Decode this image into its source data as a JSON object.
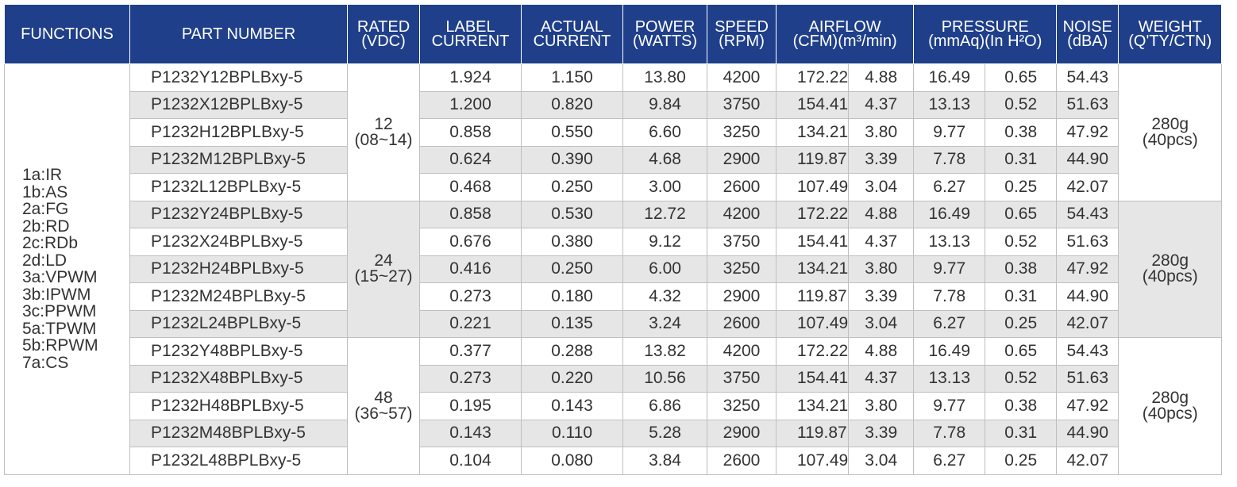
{
  "headers": {
    "functions": [
      "FUNCTIONS"
    ],
    "part_number": [
      "PART NUMBER"
    ],
    "rated": [
      "RATED",
      "(VDC)"
    ],
    "label_current": [
      "LABEL",
      "CURRENT"
    ],
    "actual_current": [
      "ACTUAL",
      "CURRENT"
    ],
    "power": [
      "POWER",
      "(WATTS)"
    ],
    "speed": [
      "SPEED",
      "(RPM)"
    ],
    "airflow": [
      "AIRFLOW",
      "(CFM)(m³/min)"
    ],
    "pressure": [
      "PRESSURE",
      "(mmAq)(In H²O)"
    ],
    "noise": [
      "NOISE",
      "(dBA)"
    ],
    "weight": [
      "WEIGHT",
      "(Q'TY/CTN)"
    ]
  },
  "functions": [
    "1a:IR",
    "1b:AS",
    "2a:FG",
    "2b:RD",
    "2c:RDb",
    "2d:LD",
    "3a:VPWM",
    "3b:IPWM",
    "3c:PPWM",
    "5a:TPWM",
    "5b:RPWM",
    "7a:CS"
  ],
  "groups": [
    {
      "rated": [
        "12",
        "(08~14)"
      ],
      "weight": [
        "280g",
        "(40pcs)"
      ],
      "rows": [
        {
          "part": "P1232Y12BPLBxy-5",
          "label": "1.924",
          "actual": "1.150",
          "power": "13.80",
          "speed": "4200",
          "cfm": "172.22",
          "m3": "4.88",
          "mmaq": "16.49",
          "inh2o": "0.65",
          "noise": "54.43"
        },
        {
          "part": "P1232X12BPLBxy-5",
          "label": "1.200",
          "actual": "0.820",
          "power": "9.84",
          "speed": "3750",
          "cfm": "154.41",
          "m3": "4.37",
          "mmaq": "13.13",
          "inh2o": "0.52",
          "noise": "51.63"
        },
        {
          "part": "P1232H12BPLBxy-5",
          "label": "0.858",
          "actual": "0.550",
          "power": "6.60",
          "speed": "3250",
          "cfm": "134.21",
          "m3": "3.80",
          "mmaq": "9.77",
          "inh2o": "0.38",
          "noise": "47.92"
        },
        {
          "part": "P1232M12BPLBxy-5",
          "label": "0.624",
          "actual": "0.390",
          "power": "4.68",
          "speed": "2900",
          "cfm": "119.87",
          "m3": "3.39",
          "mmaq": "7.78",
          "inh2o": "0.31",
          "noise": "44.90"
        },
        {
          "part": "P1232L12BPLBxy-5",
          "label": "0.468",
          "actual": "0.250",
          "power": "3.00",
          "speed": "2600",
          "cfm": "107.49",
          "m3": "3.04",
          "mmaq": "6.27",
          "inh2o": "0.25",
          "noise": "42.07"
        }
      ]
    },
    {
      "rated": [
        "24",
        "(15~27)"
      ],
      "weight": [
        "280g",
        "(40pcs)"
      ],
      "rows": [
        {
          "part": "P1232Y24BPLBxy-5",
          "label": "0.858",
          "actual": "0.530",
          "power": "12.72",
          "speed": "4200",
          "cfm": "172.22",
          "m3": "4.88",
          "mmaq": "16.49",
          "inh2o": "0.65",
          "noise": "54.43"
        },
        {
          "part": "P1232X24BPLBxy-5",
          "label": "0.676",
          "actual": "0.380",
          "power": "9.12",
          "speed": "3750",
          "cfm": "154.41",
          "m3": "4.37",
          "mmaq": "13.13",
          "inh2o": "0.52",
          "noise": "51.63"
        },
        {
          "part": "P1232H24BPLBxy-5",
          "label": "0.416",
          "actual": "0.250",
          "power": "6.00",
          "speed": "3250",
          "cfm": "134.21",
          "m3": "3.80",
          "mmaq": "9.77",
          "inh2o": "0.38",
          "noise": "47.92"
        },
        {
          "part": "P1232M24BPLBxy-5",
          "label": "0.273",
          "actual": "0.180",
          "power": "4.32",
          "speed": "2900",
          "cfm": "119.87",
          "m3": "3.39",
          "mmaq": "7.78",
          "inh2o": "0.31",
          "noise": "44.90"
        },
        {
          "part": "P1232L24BPLBxy-5",
          "label": "0.221",
          "actual": "0.135",
          "power": "3.24",
          "speed": "2600",
          "cfm": "107.49",
          "m3": "3.04",
          "mmaq": "6.27",
          "inh2o": "0.25",
          "noise": "42.07"
        }
      ]
    },
    {
      "rated": [
        "48",
        "(36~57)"
      ],
      "weight": [
        "280g",
        "(40pcs)"
      ],
      "rows": [
        {
          "part": "P1232Y48BPLBxy-5",
          "label": "0.377",
          "actual": "0.288",
          "power": "13.82",
          "speed": "4200",
          "cfm": "172.22",
          "m3": "4.88",
          "mmaq": "16.49",
          "inh2o": "0.65",
          "noise": "54.43"
        },
        {
          "part": "P1232X48BPLBxy-5",
          "label": "0.273",
          "actual": "0.220",
          "power": "10.56",
          "speed": "3750",
          "cfm": "154.41",
          "m3": "4.37",
          "mmaq": "13.13",
          "inh2o": "0.52",
          "noise": "51.63"
        },
        {
          "part": "P1232H48BPLBxy-5",
          "label": "0.195",
          "actual": "0.143",
          "power": "6.86",
          "speed": "3250",
          "cfm": "134.21",
          "m3": "3.80",
          "mmaq": "9.77",
          "inh2o": "0.38",
          "noise": "47.92"
        },
        {
          "part": "P1232M48BPLBxy-5",
          "label": "0.143",
          "actual": "0.110",
          "power": "5.28",
          "speed": "2900",
          "cfm": "119.87",
          "m3": "3.39",
          "mmaq": "7.78",
          "inh2o": "0.31",
          "noise": "44.90"
        },
        {
          "part": "P1232L48BPLBxy-5",
          "label": "0.104",
          "actual": "0.080",
          "power": "3.84",
          "speed": "2600",
          "cfm": "107.49",
          "m3": "3.04",
          "mmaq": "6.27",
          "inh2o": "0.25",
          "noise": "42.07"
        }
      ]
    }
  ],
  "colors": {
    "header_bg": "#1f3f8a",
    "header_text": "#ffffff",
    "alt_row": "#e6e6e6",
    "border": "#bfbfbf"
  }
}
